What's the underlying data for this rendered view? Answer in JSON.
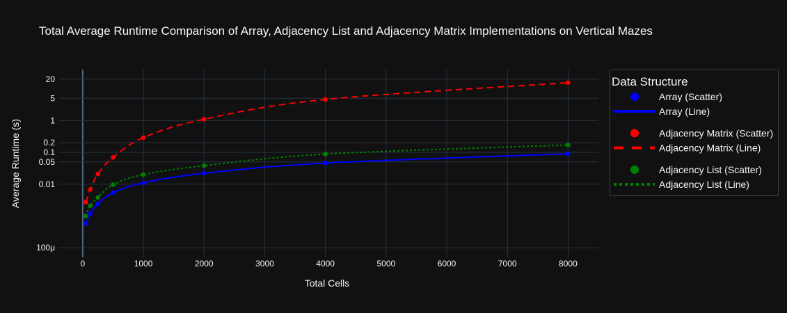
{
  "chart_data": {
    "type": "line",
    "title": "Total Average Runtime Comparison of Array, Adjacency List and Adjacency Matrix Implementations on Vertical Mazes",
    "xlabel": "Total Cells",
    "ylabel": "Average Runtime (s)",
    "xlim": [
      -400,
      8500
    ],
    "ylim": [
      5e-05,
      40
    ],
    "x_scale": "linear",
    "y_scale": "log",
    "x_ticks": [
      0,
      1000,
      2000,
      3000,
      4000,
      5000,
      6000,
      7000,
      8000
    ],
    "x_tick_labels": [
      "0",
      "1000",
      "2000",
      "3000",
      "4000",
      "5000",
      "6000",
      "7000",
      "8000"
    ],
    "y_ticks": [
      0.0001,
      0.01,
      0.05,
      0.1,
      0.2,
      1,
      5,
      20
    ],
    "y_tick_labels": [
      "100μ",
      "0.01",
      "0.05",
      "0.1",
      "0.2",
      "1",
      "5",
      "20"
    ],
    "grid": true,
    "legend_position": "right",
    "legend_title": "Data Structure",
    "x": [
      50,
      125,
      250,
      500,
      1000,
      2000,
      4000,
      8000
    ],
    "series": [
      {
        "name": "Array",
        "scatter_label": "Array (Scatter)",
        "line_label": "Array (Line)",
        "color": "#0000ff",
        "dash": "solid",
        "values": [
          0.00058,
          0.0012,
          0.0024,
          0.0054,
          0.011,
          0.022,
          0.046,
          0.09
        ]
      },
      {
        "name": "Adjacency Matrix",
        "scatter_label": "Adjacency Matrix (Scatter)",
        "line_label": "Adjacency Matrix (Line)",
        "color": "#ff0000",
        "dash": "dash",
        "values": [
          0.0027,
          0.0068,
          0.021,
          0.069,
          0.29,
          1.1,
          4.6,
          15.5
        ]
      },
      {
        "name": "Adjacency List",
        "scatter_label": "Adjacency List (Scatter)",
        "line_label": "Adjacency List (Line)",
        "color": "#008000",
        "dash": "dot",
        "values": [
          0.001,
          0.0021,
          0.0038,
          0.0096,
          0.02,
          0.038,
          0.088,
          0.17
        ]
      }
    ]
  }
}
